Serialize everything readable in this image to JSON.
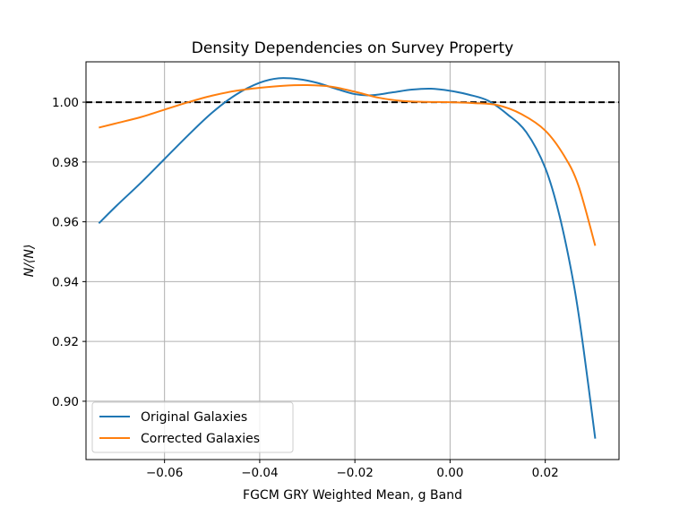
{
  "chart_data": {
    "type": "line",
    "title": "Density Dependencies on Survey Property",
    "xlabel": "FGCM GRY Weighted Mean, g Band",
    "ylabel": "N/⟨N⟩",
    "xlim": [
      -0.0765,
      0.0355
    ],
    "ylim": [
      0.8805,
      1.0135
    ],
    "xticks": [
      -0.06,
      -0.04,
      -0.02,
      0.0,
      0.02
    ],
    "xtick_labels": [
      "−0.06",
      "−0.04",
      "−0.02",
      "0.00",
      "0.02"
    ],
    "yticks": [
      0.9,
      0.92,
      0.94,
      0.96,
      0.98,
      1.0
    ],
    "ytick_labels": [
      "0.90",
      "0.92",
      "0.94",
      "0.96",
      "0.98",
      "1.00"
    ],
    "grid": true,
    "legend_position": "lower-left",
    "reference_line": {
      "y": 1.0,
      "style": "dashed",
      "color": "#000000"
    },
    "series": [
      {
        "name": "Original Galaxies",
        "color": "#1f77b4",
        "x": [
          -0.0738,
          -0.07,
          -0.065,
          -0.06,
          -0.055,
          -0.05,
          -0.045,
          -0.04,
          -0.036,
          -0.0318,
          -0.028,
          -0.024,
          -0.02,
          -0.0166,
          -0.012,
          -0.008,
          -0.004,
          0.0,
          0.004,
          0.008,
          0.012,
          0.016,
          0.02,
          0.023,
          0.026,
          0.028,
          0.0305
        ],
        "y": [
          0.9595,
          0.9655,
          0.973,
          0.981,
          0.989,
          0.9965,
          1.0025,
          1.0065,
          1.008,
          1.0077,
          1.0065,
          1.0045,
          1.0027,
          1.0023,
          1.0033,
          1.0042,
          1.0045,
          1.0038,
          1.0025,
          1.0005,
          0.996,
          0.99,
          0.978,
          0.962,
          0.939,
          0.918,
          0.8875
        ]
      },
      {
        "name": "Corrected Galaxies",
        "color": "#ff7f0e",
        "x": [
          -0.0738,
          -0.07,
          -0.065,
          -0.06,
          -0.055,
          -0.05,
          -0.045,
          -0.04,
          -0.035,
          -0.03,
          -0.025,
          -0.02,
          -0.015,
          -0.01,
          -0.005,
          0.0,
          0.005,
          0.01,
          0.015,
          0.02,
          0.024,
          0.027,
          0.0305
        ],
        "y": [
          0.9915,
          0.993,
          0.995,
          0.9975,
          1.0,
          1.0022,
          1.0038,
          1.0048,
          1.0055,
          1.0057,
          1.0052,
          1.0035,
          1.0015,
          1.0004,
          1.0001,
          1.0,
          0.9997,
          0.999,
          0.996,
          0.9905,
          0.982,
          0.972,
          0.952
        ]
      }
    ]
  }
}
